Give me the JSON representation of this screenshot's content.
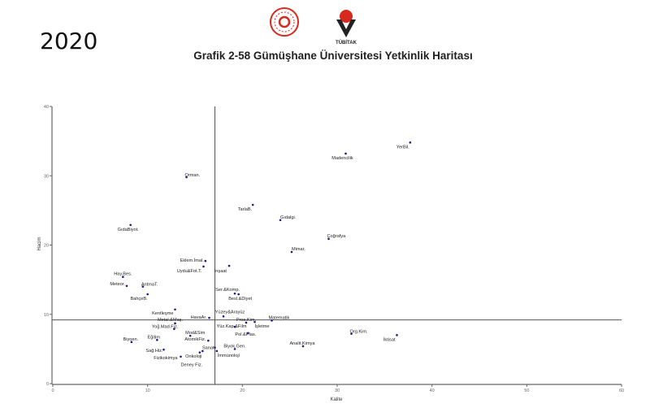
{
  "header": {
    "year": "2020",
    "title": "Grafik 2-58 Gümüşhane Üniversitesi Yetkinlik Haritası",
    "logo_text": "TÜBİTAK"
  },
  "colors": {
    "point": "#1a1a8c",
    "axis": "#666666",
    "refline": "#555555",
    "logo_red": "#d52b1e"
  },
  "chart_data": {
    "type": "scatter",
    "title": "Grafik 2-58 Gümüşhane Üniversitesi Yetkinlik Haritası",
    "xlabel": "Kalite",
    "ylabel": "Hacim",
    "xlim": [
      0,
      60
    ],
    "ylim": [
      0,
      40
    ],
    "xticks": [
      "0",
      "10",
      "20",
      "30",
      "40",
      "50",
      "60"
    ],
    "yticks": [
      "0",
      "10",
      "20",
      "30",
      "40"
    ],
    "reference_lines": {
      "x": 17.1,
      "y": 9.2
    },
    "grid": false,
    "points": [
      {
        "label": "YerBil.",
        "x": 37.7,
        "y": 34.8
      },
      {
        "label": "Madencilik",
        "x": 30.9,
        "y": 33.2
      },
      {
        "label": "Orman.",
        "x": 14.1,
        "y": 29.8
      },
      {
        "label": "TarlaB.",
        "x": 21.1,
        "y": 25.8
      },
      {
        "label": "Gıdalgi.",
        "x": 24.0,
        "y": 23.6
      },
      {
        "label": "Coğrafya",
        "x": 29.1,
        "y": 20.9
      },
      {
        "label": "GıdaBiyot.",
        "x": 8.2,
        "y": 22.9
      },
      {
        "label": "Mimar.",
        "x": 25.2,
        "y": 19.0
      },
      {
        "label": "Eklem.İmal.",
        "x": 16.1,
        "y": 17.7
      },
      {
        "label": "Uydu&Fot.T.",
        "x": 15.9,
        "y": 16.9
      },
      {
        "label": "İnşaat",
        "x": 18.6,
        "y": 17.0
      },
      {
        "label": "Hay.Bes.",
        "x": 7.4,
        "y": 15.4
      },
      {
        "label": "Meteor.",
        "x": 7.8,
        "y": 14.1
      },
      {
        "label": "AntmaT.",
        "x": 9.5,
        "y": 14.0
      },
      {
        "label": "BahçeB.",
        "x": 10.0,
        "y": 12.9
      },
      {
        "label": "Ser.&Komp.",
        "x": 19.2,
        "y": 13.0
      },
      {
        "label": "Besl.&Diyet",
        "x": 19.6,
        "y": 12.9
      },
      {
        "label": "Kentleşme",
        "x": 12.9,
        "y": 10.7
      },
      {
        "label": "Yüzey&Arayüz",
        "x": 18.0,
        "y": 9.7
      },
      {
        "label": "HavaAr.",
        "x": 16.5,
        "y": 9.5
      },
      {
        "label": "Metal.&Maş.",
        "x": 12.9,
        "y": 8.7
      },
      {
        "label": "Pros.Kim.",
        "x": 20.4,
        "y": 8.8
      },
      {
        "label": "İşletme",
        "x": 21.3,
        "y": 8.9
      },
      {
        "label": "Matematik",
        "x": 23.1,
        "y": 9.1
      },
      {
        "label": "Yüz.Kap.&Film",
        "x": 19.2,
        "y": 8.2
      },
      {
        "label": "Pol.&Plas.",
        "x": 20.6,
        "y": 7.3
      },
      {
        "label": "Yoğ.Mad.Fiz.",
        "x": 12.8,
        "y": 7.9
      },
      {
        "label": "Mod&Sim",
        "x": 14.5,
        "y": 6.9
      },
      {
        "label": "Eğitim",
        "x": 11.0,
        "y": 6.3
      },
      {
        "label": "AtomikFiz.",
        "x": 16.4,
        "y": 6.2
      },
      {
        "label": "Biyoen.",
        "x": 8.3,
        "y": 6.0
      },
      {
        "label": "Sağ.Hiz.",
        "x": 11.7,
        "y": 4.9
      },
      {
        "label": "Sanat",
        "x": 17.1,
        "y": 5.2
      },
      {
        "label": "Biyok.Gen.",
        "x": 19.2,
        "y": 5.0
      },
      {
        "label": "Onkoloji",
        "x": 15.8,
        "y": 4.7
      },
      {
        "label": "İmmünoloji",
        "x": 17.3,
        "y": 4.7
      },
      {
        "label": "Fizikokimya",
        "x": 13.5,
        "y": 3.9
      },
      {
        "label": "Deney Fiz.",
        "x": 15.5,
        "y": 4.5
      },
      {
        "label": "Analit.Kimya",
        "x": 26.4,
        "y": 5.4
      },
      {
        "label": "Org.Kim.",
        "x": 31.5,
        "y": 7.2
      },
      {
        "label": "İktisat",
        "x": 36.3,
        "y": 7.0
      }
    ]
  }
}
